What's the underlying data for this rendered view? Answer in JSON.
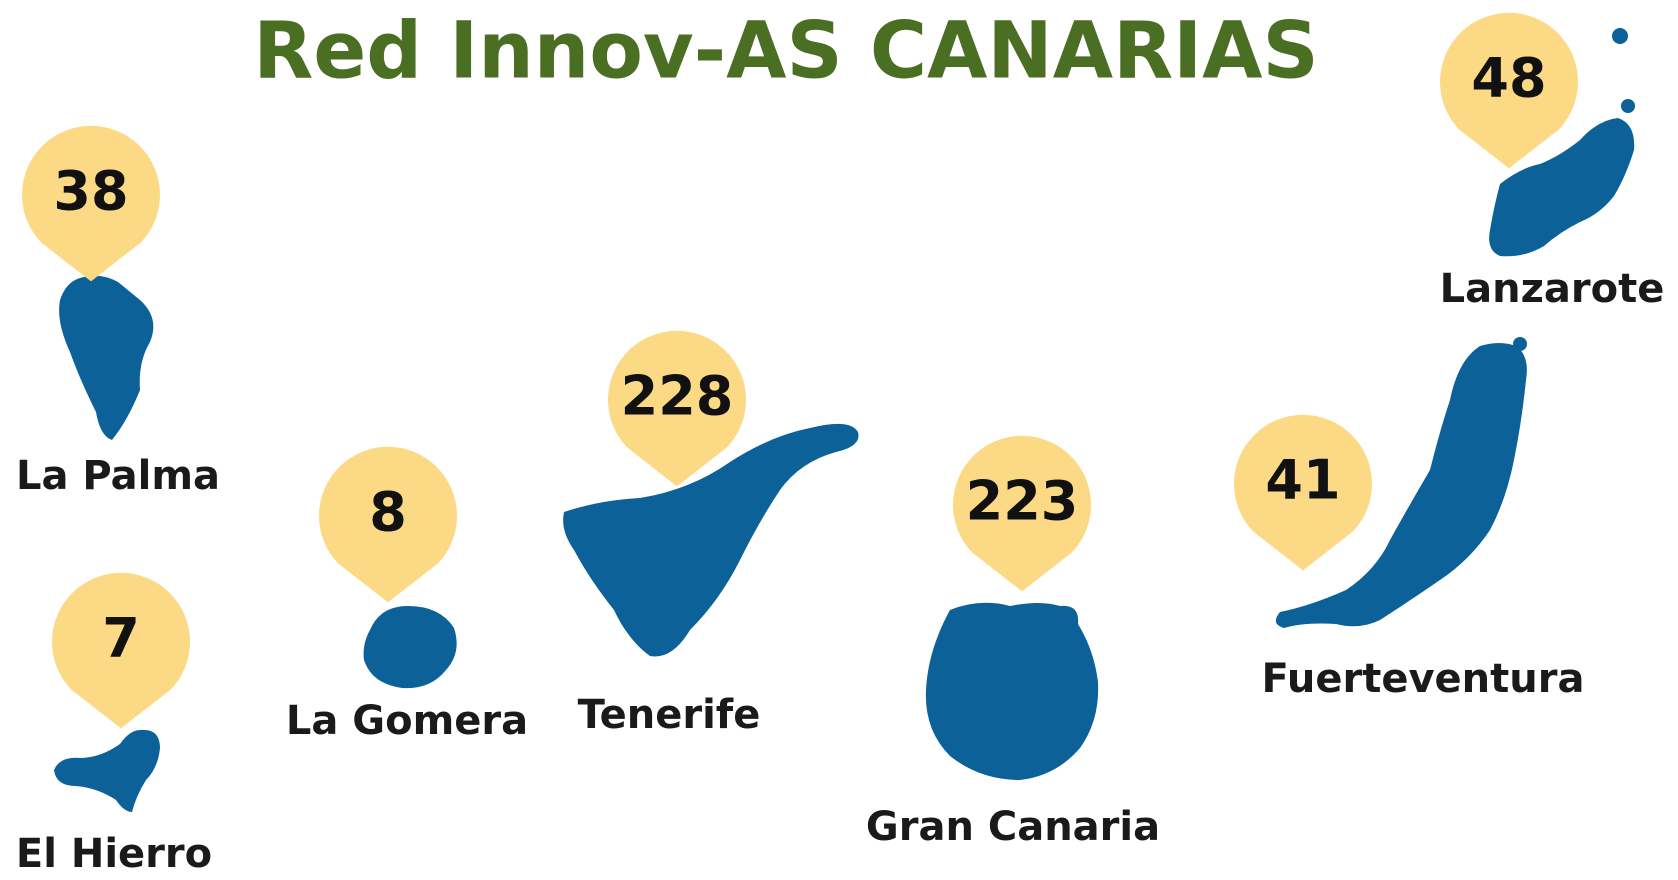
{
  "title": "Red Innov-AS CANARIAS",
  "islands": [
    {
      "name": "La Palma",
      "count": "38"
    },
    {
      "name": "El Hierro",
      "count": "7"
    },
    {
      "name": "La Gomera",
      "count": "8"
    },
    {
      "name": "Tenerife",
      "count": "228"
    },
    {
      "name": "Gran Canaria",
      "count": "223"
    },
    {
      "name": "Fuerteventura",
      "count": "41"
    },
    {
      "name": "Lanzarote",
      "count": "48"
    }
  ]
}
